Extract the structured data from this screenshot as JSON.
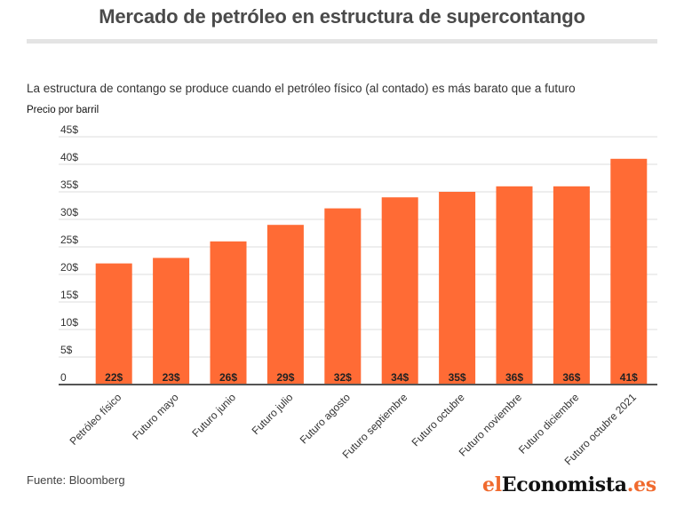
{
  "header": {
    "title": "Mercado de petróleo en estructura de supercontango",
    "subtitle": "La estructura de contango se produce cuando el petróleo físico (al contado) es más barato que a futuro",
    "ylabel": "Precio por barril"
  },
  "footer": {
    "source": "Fuente: Bloomberg",
    "logo_part1": "el",
    "logo_part2": "Economista",
    "logo_part3": ".es"
  },
  "colors": {
    "bar": "#ff6b35",
    "grid": "#dddddd",
    "axis": "#555555"
  },
  "chart_data": {
    "type": "bar",
    "categories": [
      "Petróleo físico",
      "Futuro mayo",
      "Futuro junio",
      "Futuro julio",
      "Futuro agosto",
      "Futuro septiembre",
      "Futuro octubre",
      "Futuro noviembre",
      "Futuro diciembre",
      "Futuro octubre 2021"
    ],
    "values": [
      22,
      23,
      26,
      29,
      32,
      34,
      35,
      36,
      36,
      41
    ],
    "value_labels": [
      "22$",
      "23$",
      "26$",
      "29$",
      "32$",
      "34$",
      "35$",
      "36$",
      "36$",
      "41$"
    ],
    "ylim": [
      0,
      45
    ],
    "yticks": [
      0,
      5,
      10,
      15,
      20,
      25,
      30,
      35,
      40,
      45
    ],
    "ytick_labels": [
      "0",
      "5$",
      "10$",
      "15$",
      "20$",
      "25$",
      "30$",
      "35$",
      "40$",
      "45$"
    ],
    "grid": true,
    "legend": "none"
  }
}
